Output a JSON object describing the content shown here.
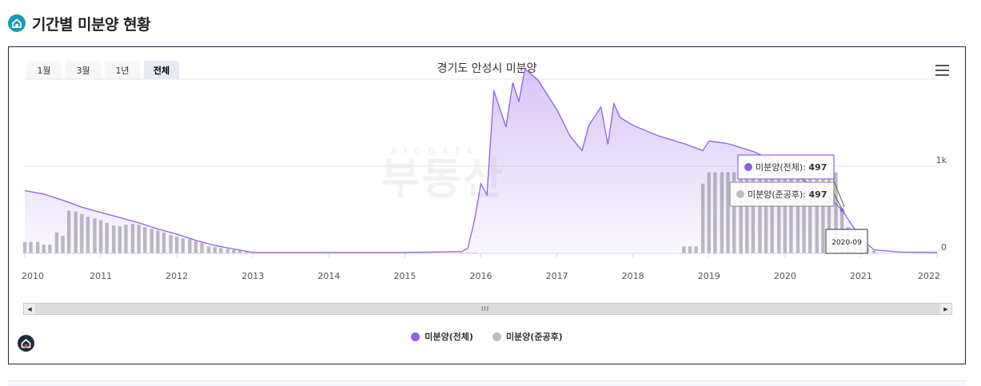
{
  "page": {
    "title": "기간별 미분양 현황"
  },
  "colors": {
    "accent": "#1a9bb7",
    "total": "#8f5fe8",
    "completed": "#bdbdbd",
    "panel_border": "#1d2d3d"
  },
  "range_buttons": [
    {
      "label": "1월",
      "active": false
    },
    {
      "label": "3월",
      "active": false
    },
    {
      "label": "1년",
      "active": false
    },
    {
      "label": "전체",
      "active": true
    }
  ],
  "watermark": {
    "main": "부동산",
    "sub": "BIGDATA"
  },
  "chart_data": {
    "type": "area",
    "title": "경기도 안성시 미분양",
    "x_ticks": [
      "2010",
      "2011",
      "2012",
      "2013",
      "2014",
      "2015",
      "2016",
      "2017",
      "2018",
      "2019",
      "2020",
      "2021",
      "2022"
    ],
    "y_ticks": [
      {
        "value": 0,
        "label": "0"
      },
      {
        "value": 1000,
        "label": "1k"
      }
    ],
    "ylim": [
      0,
      2000
    ],
    "xlim": [
      2010.0,
      2022.0
    ],
    "grid": true,
    "series": [
      {
        "name": "미분양(전체)",
        "type": "area",
        "color": "#8f5fe8",
        "points": [
          [
            2010.0,
            720
          ],
          [
            2010.25,
            680
          ],
          [
            2010.5,
            610
          ],
          [
            2010.75,
            530
          ],
          [
            2011.0,
            470
          ],
          [
            2011.25,
            410
          ],
          [
            2011.5,
            350
          ],
          [
            2011.75,
            280
          ],
          [
            2012.0,
            220
          ],
          [
            2012.25,
            150
          ],
          [
            2012.5,
            90
          ],
          [
            2012.75,
            50
          ],
          [
            2013.0,
            10
          ],
          [
            2014.0,
            10
          ],
          [
            2015.0,
            10
          ],
          [
            2015.75,
            20
          ],
          [
            2015.83,
            60
          ],
          [
            2015.92,
            400
          ],
          [
            2016.0,
            800
          ],
          [
            2016.08,
            670
          ],
          [
            2016.17,
            1870
          ],
          [
            2016.33,
            1450
          ],
          [
            2016.42,
            1960
          ],
          [
            2016.5,
            1740
          ],
          [
            2016.58,
            2120
          ],
          [
            2016.75,
            1990
          ],
          [
            2017.0,
            1650
          ],
          [
            2017.17,
            1350
          ],
          [
            2017.33,
            1180
          ],
          [
            2017.42,
            1470
          ],
          [
            2017.58,
            1680
          ],
          [
            2017.67,
            1250
          ],
          [
            2017.75,
            1720
          ],
          [
            2017.83,
            1560
          ],
          [
            2018.0,
            1470
          ],
          [
            2018.33,
            1350
          ],
          [
            2018.67,
            1260
          ],
          [
            2018.92,
            1180
          ],
          [
            2019.0,
            1290
          ],
          [
            2019.25,
            1260
          ],
          [
            2019.58,
            1170
          ],
          [
            2019.92,
            1040
          ],
          [
            2020.08,
            920
          ],
          [
            2020.33,
            800
          ],
          [
            2020.58,
            650
          ],
          [
            2020.75,
            497
          ],
          [
            2021.0,
            170
          ],
          [
            2021.17,
            40
          ],
          [
            2021.5,
            15
          ],
          [
            2022.0,
            10
          ]
        ]
      },
      {
        "name": "미분양(준공후)",
        "type": "bar",
        "color": "#bdbdbd",
        "points": [
          [
            2010.0,
            130
          ],
          [
            2010.08,
            130
          ],
          [
            2010.17,
            130
          ],
          [
            2010.25,
            100
          ],
          [
            2010.33,
            100
          ],
          [
            2010.42,
            240
          ],
          [
            2010.5,
            200
          ],
          [
            2010.58,
            490
          ],
          [
            2010.67,
            480
          ],
          [
            2010.75,
            450
          ],
          [
            2010.83,
            420
          ],
          [
            2010.92,
            400
          ],
          [
            2011.0,
            380
          ],
          [
            2011.08,
            350
          ],
          [
            2011.17,
            320
          ],
          [
            2011.25,
            310
          ],
          [
            2011.33,
            330
          ],
          [
            2011.42,
            340
          ],
          [
            2011.5,
            330
          ],
          [
            2011.58,
            300
          ],
          [
            2011.67,
            280
          ],
          [
            2011.75,
            260
          ],
          [
            2011.83,
            240
          ],
          [
            2011.92,
            210
          ],
          [
            2012.0,
            190
          ],
          [
            2012.08,
            170
          ],
          [
            2012.17,
            160
          ],
          [
            2012.25,
            140
          ],
          [
            2012.33,
            120
          ],
          [
            2012.42,
            80
          ],
          [
            2012.5,
            70
          ],
          [
            2012.58,
            60
          ],
          [
            2012.67,
            50
          ],
          [
            2012.75,
            40
          ],
          [
            2012.83,
            35
          ],
          [
            2012.92,
            25
          ],
          [
            2015.83,
            10
          ],
          [
            2015.92,
            10
          ],
          [
            2018.67,
            80
          ],
          [
            2018.75,
            80
          ],
          [
            2018.83,
            80
          ],
          [
            2018.92,
            800
          ],
          [
            2019.0,
            930
          ],
          [
            2019.08,
            930
          ],
          [
            2019.17,
            930
          ],
          [
            2019.25,
            930
          ],
          [
            2019.33,
            930
          ],
          [
            2019.42,
            930
          ],
          [
            2019.5,
            930
          ],
          [
            2019.58,
            930
          ],
          [
            2019.67,
            930
          ],
          [
            2019.75,
            930
          ],
          [
            2019.83,
            930
          ],
          [
            2019.92,
            930
          ],
          [
            2020.0,
            930
          ],
          [
            2020.08,
            930
          ],
          [
            2020.17,
            930
          ],
          [
            2020.25,
            930
          ],
          [
            2020.33,
            930
          ],
          [
            2020.42,
            930
          ],
          [
            2020.5,
            930
          ],
          [
            2020.58,
            930
          ],
          [
            2020.67,
            930
          ],
          [
            2020.75,
            497
          ],
          [
            2020.83,
            300
          ],
          [
            2020.92,
            200
          ],
          [
            2021.0,
            130
          ],
          [
            2021.08,
            60
          ],
          [
            2021.17,
            30
          ]
        ]
      }
    ],
    "tooltip": {
      "x_label": "2020-09",
      "entries": [
        {
          "series": "미분양(전체)",
          "label": "미분양(전체)",
          "value": "497"
        },
        {
          "series": "미분양(준공후)",
          "label": "미분양(준공후)",
          "value": "497"
        }
      ]
    },
    "legend": {
      "position": "bottom",
      "items": [
        {
          "label": "미분양(전체)",
          "color": "#8f5fe8"
        },
        {
          "label": "미분양(준공후)",
          "color": "#bdbdbd"
        }
      ]
    }
  }
}
